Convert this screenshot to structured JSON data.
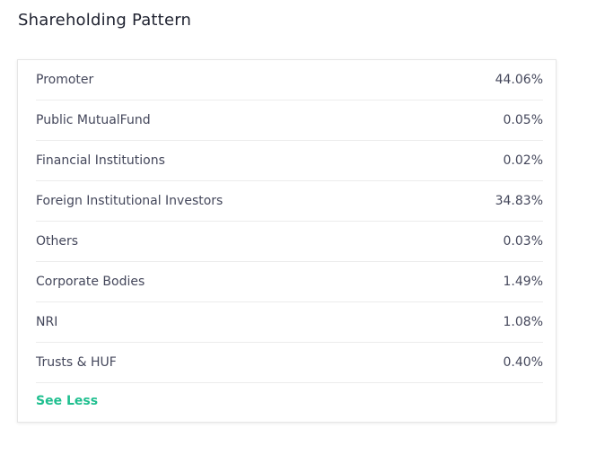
{
  "header": {
    "title": "Shareholding Pattern"
  },
  "table": {
    "rows": [
      [
        "Promoter",
        "44.06%"
      ],
      [
        "Public MutualFund",
        "0.05%"
      ],
      [
        "Financial Institutions",
        "0.02%"
      ],
      [
        "Foreign Institutional Investors",
        "34.83%"
      ],
      [
        "Others",
        "0.03%"
      ],
      [
        "Corporate Bodies",
        "1.49%"
      ],
      [
        "NRI",
        "1.08%"
      ],
      [
        "Trusts & HUF",
        "0.40%"
      ]
    ]
  },
  "footer": {
    "link": "See Less"
  }
}
